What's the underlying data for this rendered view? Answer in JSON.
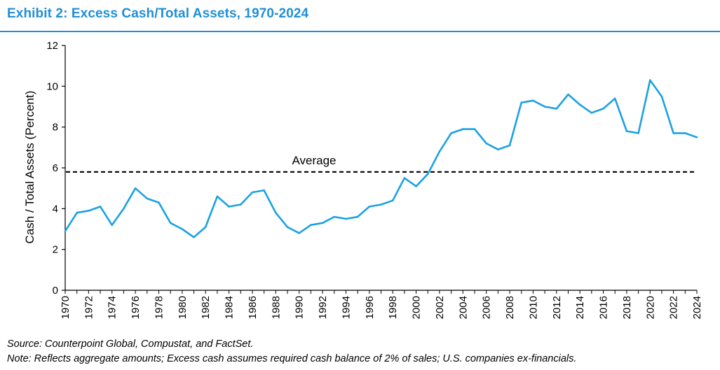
{
  "header": {
    "title": "Exhibit 2: Excess Cash/Total Assets, 1970-2024"
  },
  "footer": {
    "source": "Source: Counterpoint Global, Compustat, and FactSet.",
    "note": "Note: Reflects aggregate amounts; Excess cash assumes required cash balance of 2% of sales; U.S. companies ex-financials."
  },
  "colors": {
    "accent": "#1f8fd6",
    "series": "#1ba1e2",
    "average_line": "#000000"
  },
  "chart_data": {
    "type": "line",
    "title": "Exhibit 2: Excess Cash/Total Assets, 1970-2024",
    "xlabel": "",
    "ylabel": "Cash / Total Assets (Percent)",
    "ylim": [
      0,
      12
    ],
    "yticks": [
      "0",
      "2",
      "4",
      "6",
      "8",
      "10",
      "12"
    ],
    "xlim": [
      1970,
      2024
    ],
    "xticks": [
      "1970",
      "1972",
      "1974",
      "1976",
      "1978",
      "1980",
      "1982",
      "1984",
      "1986",
      "1988",
      "1990",
      "1992",
      "1994",
      "1996",
      "1998",
      "2000",
      "2002",
      "2004",
      "2006",
      "2008",
      "2010",
      "2012",
      "2014",
      "2016",
      "2018",
      "2020",
      "2022",
      "2024"
    ],
    "grid": false,
    "legend": "none",
    "x": [
      1970,
      1971,
      1972,
      1973,
      1974,
      1975,
      1976,
      1977,
      1978,
      1979,
      1980,
      1981,
      1982,
      1983,
      1984,
      1985,
      1986,
      1987,
      1988,
      1989,
      1990,
      1991,
      1992,
      1993,
      1994,
      1995,
      1996,
      1997,
      1998,
      1999,
      2000,
      2001,
      2002,
      2003,
      2004,
      2005,
      2006,
      2007,
      2008,
      2009,
      2010,
      2011,
      2012,
      2013,
      2014,
      2015,
      2016,
      2017,
      2018,
      2019,
      2020,
      2021,
      2022,
      2023,
      2024
    ],
    "series": [
      {
        "values": [
          2.9,
          3.8,
          3.9,
          4.1,
          3.2,
          4.0,
          5.0,
          4.5,
          4.3,
          3.3,
          3.0,
          2.6,
          3.1,
          4.6,
          4.1,
          4.2,
          4.8,
          4.9,
          3.8,
          3.1,
          2.8,
          3.2,
          3.3,
          3.6,
          3.5,
          3.6,
          4.1,
          4.2,
          4.4,
          5.5,
          5.1,
          5.7,
          6.8,
          7.7,
          7.9,
          7.9,
          7.2,
          6.9,
          7.1,
          9.2,
          9.3,
          9.0,
          8.9,
          9.6,
          9.1,
          8.7,
          8.9,
          9.4,
          7.8,
          7.7,
          10.3,
          9.5,
          7.7,
          7.7,
          7.5
        ]
      }
    ],
    "annotations": [
      {
        "label": "Average",
        "type": "hline",
        "y": 5.8
      }
    ]
  }
}
